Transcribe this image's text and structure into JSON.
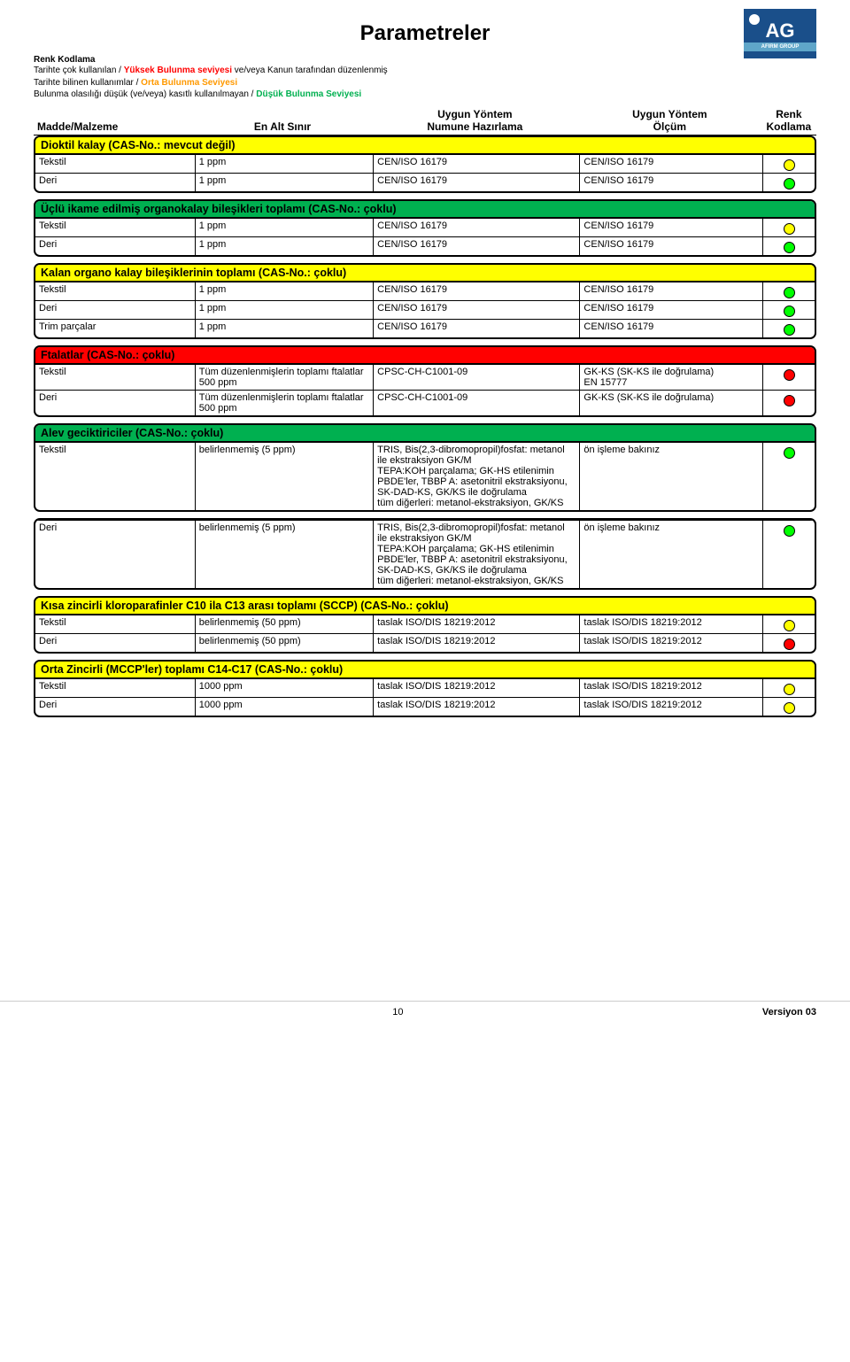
{
  "title": "Parametreler",
  "logo": {
    "text": "AG",
    "sub": "AFIRM GROUP"
  },
  "legend": {
    "title": "Renk Kodlama",
    "l1a": "Tarihte çok kullanılan / ",
    "l1b": "Yüksek Bulunma seviyesi",
    "l1c": " ve/veya Kanun tarafından düzenlenmiş",
    "l2a": "Tarihte bilinen kullanımlar / ",
    "l2b": "Orta Bulunma Seviyesi",
    "l3a": "Bulunma olasılığı düşük (ve/veya) kasıtlı kullanılmayan / ",
    "l3b": "Düşük Bulunma Seviyesi"
  },
  "headers": {
    "c0": "Madde/Malzeme",
    "c1": "En Alt Sınır",
    "c2a": "Uygun Yöntem",
    "c2b": "Numune Hazırlama",
    "c3a": "Uygun Yöntem",
    "c3b": "Ölçüm",
    "c4a": "Renk",
    "c4b": "Kodlama"
  },
  "colors": {
    "yellow_bg": "#ffff00",
    "green_bg": "#00b050",
    "red_bg": "#ff0000",
    "dot_yellow": "#ffff00",
    "dot_green": "#00ff00",
    "dot_red": "#ff0000"
  },
  "sections": [
    {
      "title": "Dioktil kalay (CAS-No.: mevcut değil)",
      "bg": "#ffff00",
      "rows": [
        {
          "c0": "Tekstil",
          "c1": "1 ppm",
          "c2": "CEN/ISO 16179",
          "c3": "CEN/ISO 16179",
          "dot": "#ffff00"
        },
        {
          "c0": "Deri",
          "c1": "1 ppm",
          "c2": "CEN/ISO 16179",
          "c3": "CEN/ISO 16179",
          "dot": "#00ff00"
        }
      ]
    },
    {
      "title": "Üçlü ikame edilmiş organokalay bileşikleri toplamı (CAS-No.: çoklu)",
      "bg": "#00b050",
      "rows": [
        {
          "c0": "Tekstil",
          "c1": "1 ppm",
          "c2": "CEN/ISO 16179",
          "c3": "CEN/ISO 16179",
          "dot": "#ffff00"
        },
        {
          "c0": "Deri",
          "c1": "1 ppm",
          "c2": "CEN/ISO 16179",
          "c3": "CEN/ISO 16179",
          "dot": "#00ff00"
        }
      ]
    },
    {
      "title": "Kalan organo kalay bileşiklerinin toplamı (CAS-No.: çoklu)",
      "bg": "#ffff00",
      "rows": [
        {
          "c0": "Tekstil",
          "c1": "1 ppm",
          "c2": "CEN/ISO 16179",
          "c3": "CEN/ISO 16179",
          "dot": "#00ff00"
        },
        {
          "c0": "Deri",
          "c1": "1 ppm",
          "c2": "CEN/ISO 16179",
          "c3": "CEN/ISO 16179",
          "dot": "#00ff00"
        },
        {
          "c0": "Trim parçalar",
          "c1": "1 ppm",
          "c2": "CEN/ISO 16179",
          "c3": "CEN/ISO 16179",
          "dot": "#00ff00"
        }
      ]
    },
    {
      "title": "Ftalatlar (CAS-No.: çoklu)",
      "bg": "#ff0000",
      "rows": [
        {
          "c0": "Tekstil",
          "c1": "Tüm düzenlenmişlerin toplamı ftalatlar 500 ppm",
          "c2": "CPSC-CH-C1001-09",
          "c3": "GK-KS (SK-KS ile doğrulama)\nEN 15777",
          "dot": "#ff0000"
        },
        {
          "c0": "Deri",
          "c1": "Tüm düzenlenmişlerin toplamı ftalatlar 500 ppm",
          "c2": "CPSC-CH-C1001-09",
          "c3": "GK-KS (SK-KS ile doğrulama)",
          "dot": "#ff0000"
        }
      ]
    },
    {
      "title": "Alev geciktiriciler (CAS-No.: çoklu)",
      "bg": "#00b050",
      "rows": [
        {
          "c0": "Tekstil",
          "c1": "belirlenmemiş (5 ppm)",
          "c2": "TRIS, Bis(2,3-dibromopropil)fosfat: metanol ile ekstraksiyon GK/M\nTEPA:KOH parçalama; GK-HS etilenimin\nPBDE'ler, TBBP A: asetonitril ekstraksiyonu, SK-DAD-KS, GK/KS ile doğrulama\ntüm diğerleri: metanol-ekstraksiyon, GK/KS",
          "c3": "ön işleme bakınız",
          "dot": "#00ff00"
        }
      ]
    },
    {
      "title": null,
      "bg": null,
      "rows": [
        {
          "c0": "Deri",
          "c1": "belirlenmemiş (5 ppm)",
          "c2": "TRIS, Bis(2,3-dibromopropil)fosfat: metanol ile ekstraksiyon GK/M\nTEPA:KOH parçalama; GK-HS etilenimin\nPBDE'ler, TBBP A: asetonitril ekstraksiyonu, SK-DAD-KS, GK/KS ile doğrulama\ntüm diğerleri: metanol-ekstraksiyon, GK/KS",
          "c3": "ön işleme bakınız",
          "dot": "#00ff00"
        }
      ]
    },
    {
      "title": "Kısa zincirli kloroparafinler C10 ila C13 arası toplamı (SCCP) (CAS-No.: çoklu)",
      "bg": "#ffff00",
      "rows": [
        {
          "c0": "Tekstil",
          "c1": "belirlenmemiş (50 ppm)",
          "c2": "taslak ISO/DIS 18219:2012",
          "c3": "taslak ISO/DIS 18219:2012",
          "dot": "#ffff00"
        },
        {
          "c0": "Deri",
          "c1": "belirlenmemiş (50 ppm)",
          "c2": "taslak ISO/DIS 18219:2012",
          "c3": "taslak ISO/DIS 18219:2012",
          "dot": "#ff0000"
        }
      ]
    },
    {
      "title": "Orta Zincirli (MCCP'ler) toplamı C14-C17 (CAS-No.: çoklu)",
      "bg": "#ffff00",
      "rows": [
        {
          "c0": "Tekstil",
          "c1": "1000 ppm",
          "c2": "taslak ISO/DIS 18219:2012",
          "c3": "taslak ISO/DIS 18219:2012",
          "dot": "#ffff00"
        },
        {
          "c0": "Deri",
          "c1": "1000 ppm",
          "c2": "taslak ISO/DIS 18219:2012",
          "c3": "taslak ISO/DIS 18219:2012",
          "dot": "#ffff00"
        }
      ]
    }
  ],
  "footer": {
    "page": "10",
    "version": "Versiyon 03"
  }
}
